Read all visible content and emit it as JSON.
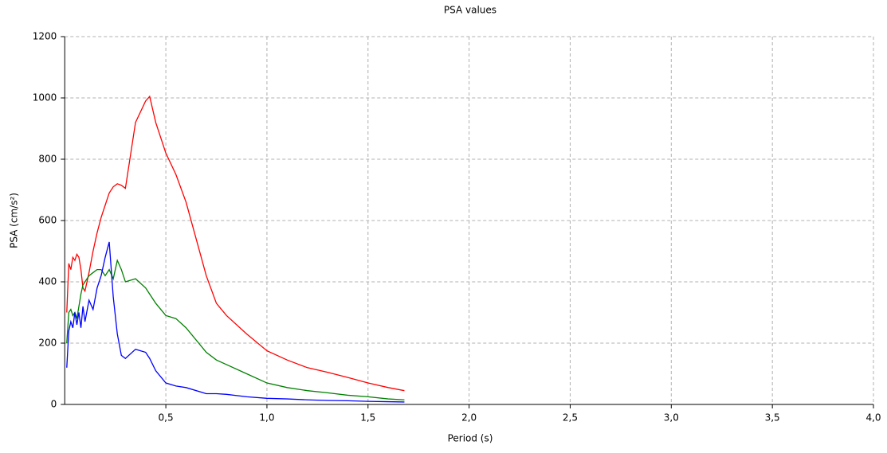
{
  "chart_data": {
    "type": "line",
    "title": "PSA values",
    "xlabel": "Period (s)",
    "ylabel": "PSA (cm/s²)",
    "x": [
      0.01,
      0.02,
      0.03,
      0.04,
      0.05,
      0.06,
      0.07,
      0.08,
      0.09,
      0.1,
      0.12,
      0.14,
      0.16,
      0.18,
      0.2,
      0.22,
      0.24,
      0.26,
      0.28,
      0.3,
      0.35,
      0.4,
      0.42,
      0.45,
      0.5,
      0.55,
      0.6,
      0.7,
      0.75,
      0.8,
      0.9,
      1.0,
      1.1,
      1.2,
      1.3,
      1.4,
      1.5,
      1.6,
      1.68
    ],
    "series": [
      {
        "color": "#ff0000",
        "values": [
          300,
          460,
          440,
          480,
          470,
          490,
          480,
          440,
          380,
          370,
          430,
          500,
          560,
          610,
          650,
          690,
          710,
          720,
          715,
          705,
          920,
          990,
          1005,
          920,
          820,
          750,
          660,
          420,
          330,
          290,
          230,
          175,
          145,
          120,
          105,
          88,
          70,
          55,
          45
        ]
      },
      {
        "color": "#008000",
        "values": [
          200,
          300,
          310,
          290,
          300,
          280,
          320,
          360,
          390,
          400,
          420,
          430,
          440,
          440,
          420,
          440,
          410,
          470,
          440,
          400,
          410,
          380,
          360,
          330,
          290,
          280,
          250,
          170,
          145,
          130,
          100,
          70,
          55,
          45,
          38,
          30,
          25,
          18,
          15
        ]
      },
      {
        "color": "#0000ff",
        "values": [
          120,
          240,
          270,
          250,
          300,
          260,
          300,
          250,
          320,
          270,
          340,
          310,
          380,
          420,
          480,
          530,
          350,
          230,
          160,
          150,
          180,
          170,
          150,
          110,
          70,
          60,
          55,
          35,
          35,
          33,
          25,
          20,
          18,
          15,
          13,
          12,
          10,
          9,
          8
        ]
      }
    ],
    "xlim": [
      0,
      4
    ],
    "ylim": [
      0,
      1200
    ],
    "xticks": [
      {
        "value": 0.5,
        "label": "0,5"
      },
      {
        "value": 1,
        "label": "1,0"
      },
      {
        "value": 1.5,
        "label": "1,5"
      },
      {
        "value": 2,
        "label": "2,0"
      },
      {
        "value": 2.5,
        "label": "2,5"
      },
      {
        "value": 3,
        "label": "3,0"
      },
      {
        "value": 3.5,
        "label": "3,5"
      },
      {
        "value": 4,
        "label": "4,0"
      }
    ],
    "yticks": [
      0,
      200,
      400,
      600,
      800,
      1000,
      1200
    ],
    "grid": true
  }
}
